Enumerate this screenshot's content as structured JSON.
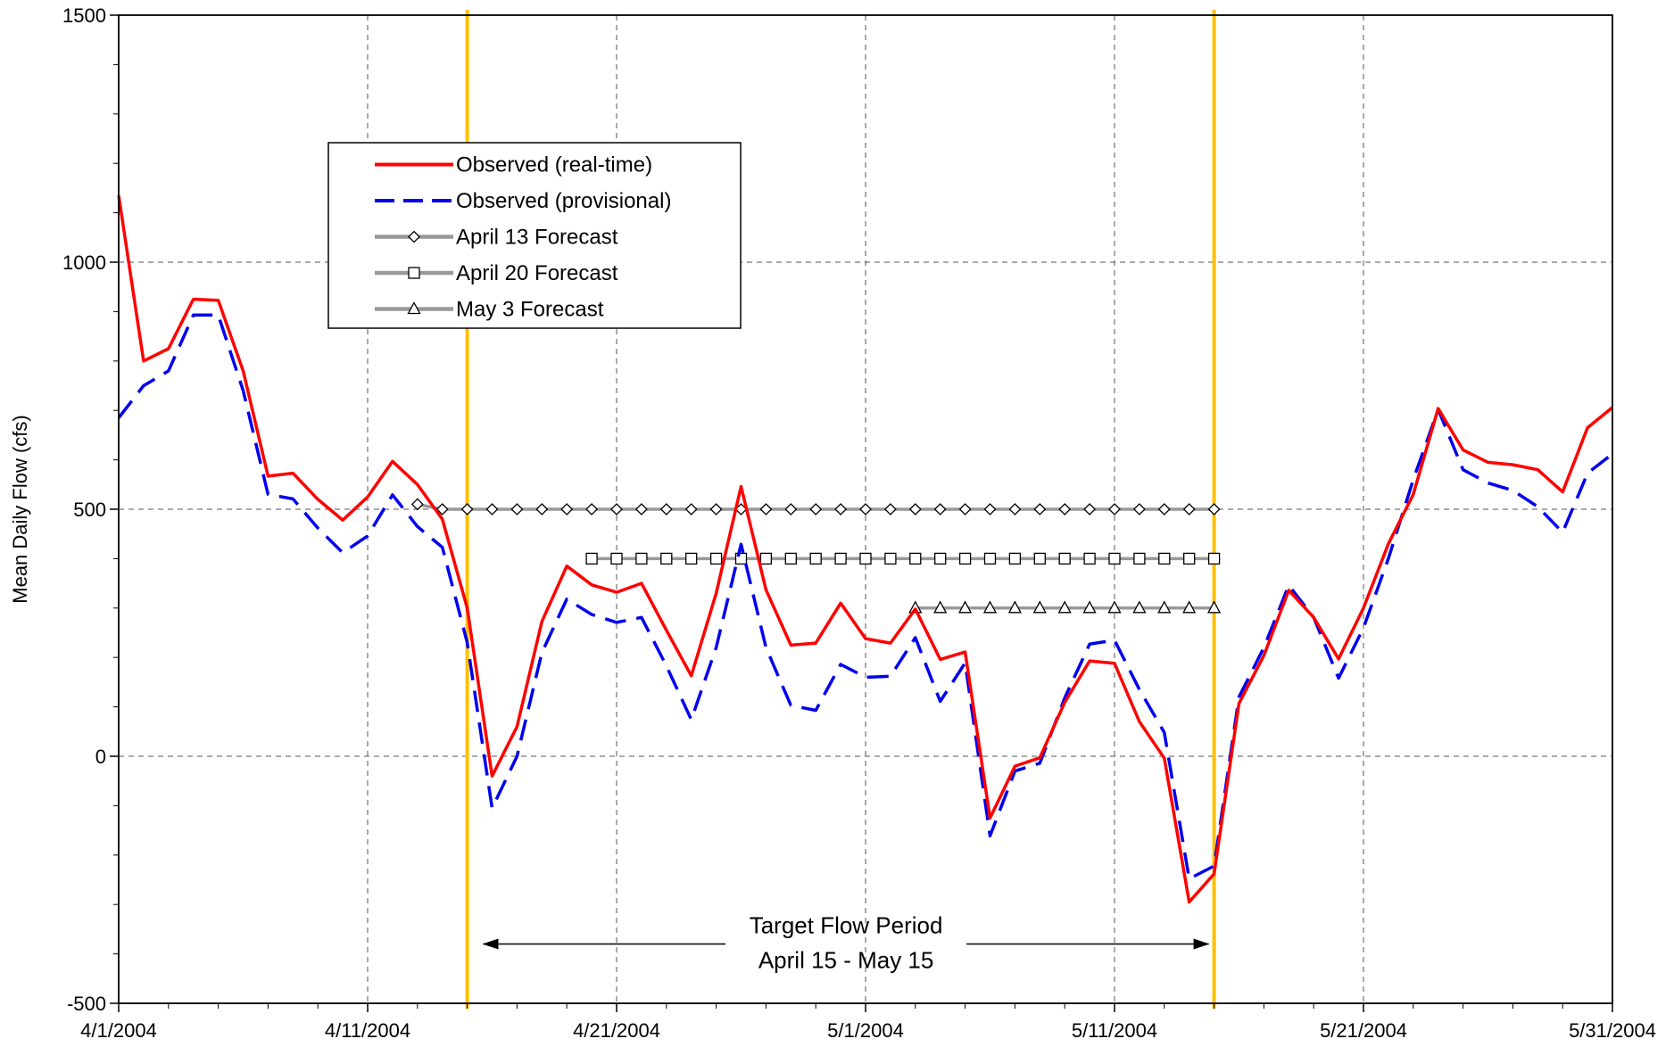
{
  "chart_data": {
    "type": "line",
    "title": "",
    "xlabel": "",
    "ylabel": "Mean Daily Flow (cfs)",
    "ylim": [
      -500,
      1500
    ],
    "xlim": [
      "4/1/2004",
      "5/31/2004"
    ],
    "y_ticks": [
      {
        "value": -500,
        "label": "-500"
      },
      {
        "value": 0,
        "label": "0"
      },
      {
        "value": 500,
        "label": "500"
      },
      {
        "value": 1000,
        "label": "1000"
      },
      {
        "value": 1500,
        "label": "1500"
      }
    ],
    "x_ticks": [
      {
        "date": "4/1/2004",
        "label": "4/1/2004"
      },
      {
        "date": "4/11/2004",
        "label": "4/11/2004"
      },
      {
        "date": "4/21/2004",
        "label": "4/21/2004"
      },
      {
        "date": "5/1/2004",
        "label": "5/1/2004"
      },
      {
        "date": "5/11/2004",
        "label": "5/11/2004"
      },
      {
        "date": "5/21/2004",
        "label": "5/21/2004"
      },
      {
        "date": "5/31/2004",
        "label": "5/31/2004"
      }
    ],
    "grid": true,
    "legend": {
      "position": "upper-left",
      "entries": [
        {
          "label": "Observed (real-time)",
          "color": "#ff0000",
          "style": "solid",
          "marker": "none"
        },
        {
          "label": "Observed (provisional)",
          "color": "#0000ee",
          "style": "dashed",
          "marker": "none"
        },
        {
          "label": "April 13 Forecast",
          "color": "#999999",
          "style": "solid",
          "marker": "diamond"
        },
        {
          "label": "April 20 Forecast",
          "color": "#999999",
          "style": "solid",
          "marker": "square"
        },
        {
          "label": "May 3 Forecast",
          "color": "#999999",
          "style": "solid",
          "marker": "triangle"
        }
      ]
    },
    "series": [
      {
        "name": "Observed (real-time)",
        "color": "#ff0000",
        "style": "solid",
        "points": [
          [
            "4/1/2004",
            1135
          ],
          [
            "4/2/2004",
            800
          ],
          [
            "4/3/2004",
            825
          ],
          [
            "4/4/2004",
            925
          ],
          [
            "4/5/2004",
            923
          ],
          [
            "4/6/2004",
            780
          ],
          [
            "4/7/2004",
            567
          ],
          [
            "4/8/2004",
            573
          ],
          [
            "4/9/2004",
            520
          ],
          [
            "4/10/2004",
            478
          ],
          [
            "4/11/2004",
            525
          ],
          [
            "4/12/2004",
            597
          ],
          [
            "4/13/2004",
            550
          ],
          [
            "4/14/2004",
            480
          ],
          [
            "4/15/2004",
            300
          ],
          [
            "4/16/2004",
            -40
          ],
          [
            "4/17/2004",
            60
          ],
          [
            "4/18/2004",
            273
          ],
          [
            "4/19/2004",
            385
          ],
          [
            "4/20/2004",
            347
          ],
          [
            "4/21/2004",
            332
          ],
          [
            "4/22/2004",
            350
          ],
          [
            "4/23/2004",
            255
          ],
          [
            "4/24/2004",
            163
          ],
          [
            "4/25/2004",
            330
          ],
          [
            "4/26/2004",
            546
          ],
          [
            "4/27/2004",
            337
          ],
          [
            "4/28/2004",
            225
          ],
          [
            "4/29/2004",
            229
          ],
          [
            "4/30/2004",
            310
          ],
          [
            "5/1/2004",
            238
          ],
          [
            "5/2/2004",
            229
          ],
          [
            "5/3/2004",
            298
          ],
          [
            "5/4/2004",
            196
          ],
          [
            "5/5/2004",
            211
          ],
          [
            "5/6/2004",
            -125
          ],
          [
            "5/7/2004",
            -20
          ],
          [
            "5/8/2004",
            -3
          ],
          [
            "5/9/2004",
            109
          ],
          [
            "5/10/2004",
            193
          ],
          [
            "5/11/2004",
            188
          ],
          [
            "5/12/2004",
            70
          ],
          [
            "5/13/2004",
            -4
          ],
          [
            "5/14/2004",
            -295
          ],
          [
            "5/15/2004",
            -238
          ],
          [
            "5/16/2004",
            107
          ],
          [
            "5/17/2004",
            204
          ],
          [
            "5/18/2004",
            336
          ],
          [
            "5/19/2004",
            281
          ],
          [
            "5/20/2004",
            197
          ],
          [
            "5/21/2004",
            300
          ],
          [
            "5/22/2004",
            430
          ],
          [
            "5/23/2004",
            530
          ],
          [
            "5/24/2004",
            704
          ],
          [
            "5/25/2004",
            620
          ],
          [
            "5/26/2004",
            595
          ],
          [
            "5/27/2004",
            590
          ],
          [
            "5/28/2004",
            580
          ],
          [
            "5/29/2004",
            535
          ],
          [
            "5/30/2004",
            665
          ],
          [
            "5/31/2004",
            706
          ]
        ]
      },
      {
        "name": "Observed (provisional)",
        "color": "#0000ee",
        "style": "dashed",
        "points": [
          [
            "4/1/2004",
            685
          ],
          [
            "4/2/2004",
            750
          ],
          [
            "4/3/2004",
            780
          ],
          [
            "4/4/2004",
            893
          ],
          [
            "4/5/2004",
            893
          ],
          [
            "4/6/2004",
            740
          ],
          [
            "4/7/2004",
            530
          ],
          [
            "4/8/2004",
            521
          ],
          [
            "4/9/2004",
            462
          ],
          [
            "4/10/2004",
            412
          ],
          [
            "4/11/2004",
            446
          ],
          [
            "4/12/2004",
            529
          ],
          [
            "4/13/2004",
            465
          ],
          [
            "4/14/2004",
            423
          ],
          [
            "4/15/2004",
            230
          ],
          [
            "4/16/2004",
            -105
          ],
          [
            "4/17/2004",
            0
          ],
          [
            "4/18/2004",
            210
          ],
          [
            "4/19/2004",
            318
          ],
          [
            "4/20/2004",
            287
          ],
          [
            "4/21/2004",
            271
          ],
          [
            "4/22/2004",
            281
          ],
          [
            "4/23/2004",
            183
          ],
          [
            "4/24/2004",
            74
          ],
          [
            "4/25/2004",
            220
          ],
          [
            "4/26/2004",
            429
          ],
          [
            "4/27/2004",
            220
          ],
          [
            "4/28/2004",
            103
          ],
          [
            "4/29/2004",
            93
          ],
          [
            "4/30/2004",
            186
          ],
          [
            "5/1/2004",
            160
          ],
          [
            "5/2/2004",
            162
          ],
          [
            "5/3/2004",
            240
          ],
          [
            "5/4/2004",
            111
          ],
          [
            "5/5/2004",
            189
          ],
          [
            "5/6/2004",
            -161
          ],
          [
            "5/7/2004",
            -30
          ],
          [
            "5/8/2004",
            -14
          ],
          [
            "5/9/2004",
            118
          ],
          [
            "5/10/2004",
            227
          ],
          [
            "5/11/2004",
            235
          ],
          [
            "5/12/2004",
            135
          ],
          [
            "5/13/2004",
            48
          ],
          [
            "5/14/2004",
            -248
          ],
          [
            "5/15/2004",
            -222
          ],
          [
            "5/16/2004",
            120
          ],
          [
            "5/17/2004",
            220
          ],
          [
            "5/18/2004",
            346
          ],
          [
            "5/19/2004",
            281
          ],
          [
            "5/20/2004",
            158
          ],
          [
            "5/21/2004",
            260
          ],
          [
            "5/22/2004",
            400
          ],
          [
            "5/23/2004",
            560
          ],
          [
            "5/24/2004",
            702
          ],
          [
            "5/25/2004",
            580
          ],
          [
            "5/26/2004",
            553
          ],
          [
            "5/27/2004",
            538
          ],
          [
            "5/28/2004",
            505
          ],
          [
            "5/29/2004",
            453
          ],
          [
            "5/30/2004",
            573
          ],
          [
            "5/31/2004",
            612
          ]
        ]
      },
      {
        "name": "April 13 Forecast",
        "color": "#999999",
        "style": "solid",
        "marker": "diamond",
        "points": [
          [
            "4/13/2004",
            510
          ],
          [
            "4/14/2004",
            500
          ],
          [
            "4/15/2004",
            500
          ],
          [
            "4/16/2004",
            500
          ],
          [
            "4/17/2004",
            500
          ],
          [
            "4/18/2004",
            500
          ],
          [
            "4/19/2004",
            500
          ],
          [
            "4/20/2004",
            500
          ],
          [
            "4/21/2004",
            500
          ],
          [
            "4/22/2004",
            500
          ],
          [
            "4/23/2004",
            500
          ],
          [
            "4/24/2004",
            500
          ],
          [
            "4/25/2004",
            500
          ],
          [
            "4/26/2004",
            500
          ],
          [
            "4/27/2004",
            500
          ],
          [
            "4/28/2004",
            500
          ],
          [
            "4/29/2004",
            500
          ],
          [
            "4/30/2004",
            500
          ],
          [
            "5/1/2004",
            500
          ],
          [
            "5/2/2004",
            500
          ],
          [
            "5/3/2004",
            500
          ],
          [
            "5/4/2004",
            500
          ],
          [
            "5/5/2004",
            500
          ],
          [
            "5/6/2004",
            500
          ],
          [
            "5/7/2004",
            500
          ],
          [
            "5/8/2004",
            500
          ],
          [
            "5/9/2004",
            500
          ],
          [
            "5/10/2004",
            500
          ],
          [
            "5/11/2004",
            500
          ],
          [
            "5/12/2004",
            500
          ],
          [
            "5/13/2004",
            500
          ],
          [
            "5/14/2004",
            500
          ],
          [
            "5/15/2004",
            500
          ]
        ]
      },
      {
        "name": "April 20 Forecast",
        "color": "#999999",
        "style": "solid",
        "marker": "square",
        "points": [
          [
            "4/20/2004",
            400
          ],
          [
            "4/21/2004",
            400
          ],
          [
            "4/22/2004",
            400
          ],
          [
            "4/23/2004",
            400
          ],
          [
            "4/24/2004",
            400
          ],
          [
            "4/25/2004",
            400
          ],
          [
            "4/26/2004",
            400
          ],
          [
            "4/27/2004",
            400
          ],
          [
            "4/28/2004",
            400
          ],
          [
            "4/29/2004",
            400
          ],
          [
            "4/30/2004",
            400
          ],
          [
            "5/1/2004",
            400
          ],
          [
            "5/2/2004",
            400
          ],
          [
            "5/3/2004",
            400
          ],
          [
            "5/4/2004",
            400
          ],
          [
            "5/5/2004",
            400
          ],
          [
            "5/6/2004",
            400
          ],
          [
            "5/7/2004",
            400
          ],
          [
            "5/8/2004",
            400
          ],
          [
            "5/9/2004",
            400
          ],
          [
            "5/10/2004",
            400
          ],
          [
            "5/11/2004",
            400
          ],
          [
            "5/12/2004",
            400
          ],
          [
            "5/13/2004",
            400
          ],
          [
            "5/14/2004",
            400
          ],
          [
            "5/15/2004",
            400
          ]
        ]
      },
      {
        "name": "May 3 Forecast",
        "color": "#999999",
        "style": "solid",
        "marker": "triangle",
        "points": [
          [
            "5/3/2004",
            300
          ],
          [
            "5/4/2004",
            300
          ],
          [
            "5/5/2004",
            300
          ],
          [
            "5/6/2004",
            300
          ],
          [
            "5/7/2004",
            300
          ],
          [
            "5/8/2004",
            300
          ],
          [
            "5/9/2004",
            300
          ],
          [
            "5/10/2004",
            300
          ],
          [
            "5/11/2004",
            300
          ],
          [
            "5/12/2004",
            300
          ],
          [
            "5/13/2004",
            300
          ],
          [
            "5/14/2004",
            300
          ],
          [
            "5/15/2004",
            300
          ]
        ]
      }
    ],
    "vertical_markers": [
      {
        "date": "4/15/2004",
        "color": "#ffc000"
      },
      {
        "date": "5/15/2004",
        "color": "#ffc000"
      }
    ],
    "annotations": [
      {
        "line1": "Target Flow Period",
        "line2": "April 15 - May 15",
        "arrow_from": "4/15/2004",
        "arrow_to": "5/15/2004",
        "y": -380
      }
    ]
  }
}
